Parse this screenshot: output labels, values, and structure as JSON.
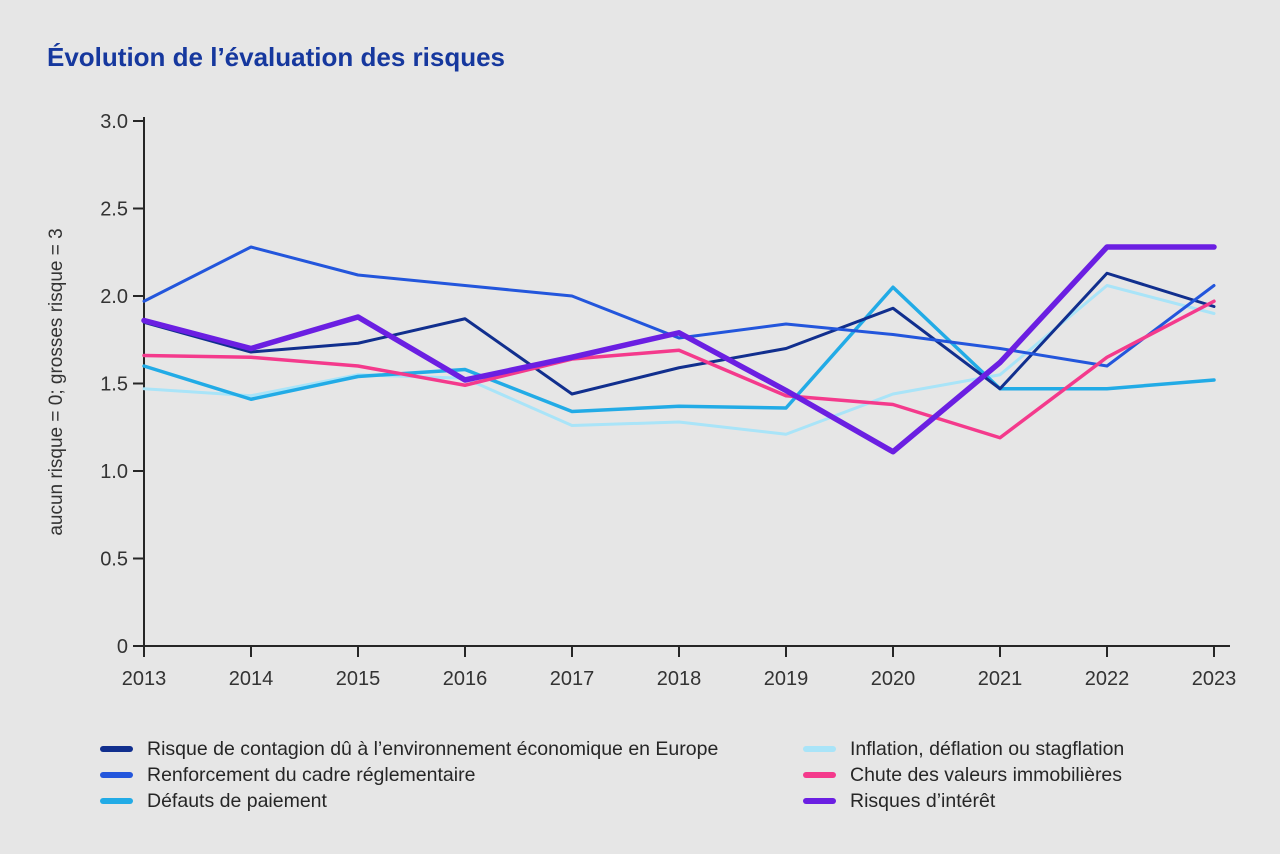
{
  "title": "Évolution de l’évaluation des risques",
  "chart_data": {
    "type": "line",
    "x": [
      2013,
      2014,
      2015,
      2016,
      2017,
      2018,
      2019,
      2020,
      2021,
      2022,
      2023
    ],
    "x_labels": [
      "2013",
      "2014",
      "2015",
      "2016",
      "2017",
      "2018",
      "2019",
      "2020",
      "2021",
      "2022",
      "2023"
    ],
    "ylabel": "aucun risque = 0; grosses risque = 3",
    "ylim": [
      0,
      3
    ],
    "yticks": [
      0,
      0.5,
      1,
      1.5,
      2,
      2.5,
      3
    ],
    "ytick_labels": [
      "0",
      "0.5",
      "1.0",
      "1.5",
      "2.0",
      "2.5",
      "3.0"
    ],
    "grid": false,
    "legend_position": "bottom",
    "series": [
      {
        "name": "Risque de contagion dû à l’environnement économique en Europe",
        "color": "#112f8e",
        "width": 3,
        "values": [
          1.85,
          1.68,
          1.73,
          1.87,
          1.44,
          1.59,
          1.7,
          1.93,
          1.47,
          2.13,
          1.94
        ]
      },
      {
        "name": "Renforcement du cadre réglementaire",
        "color": "#2356dc",
        "width": 3,
        "values": [
          1.97,
          2.28,
          2.12,
          2.06,
          2.0,
          1.76,
          1.84,
          1.78,
          1.7,
          1.6,
          2.06
        ]
      },
      {
        "name": "Défauts de paiement",
        "color": "#22abe6",
        "width": 3.5,
        "values": [
          1.6,
          1.41,
          1.54,
          1.58,
          1.34,
          1.37,
          1.36,
          2.05,
          1.47,
          1.47,
          1.52
        ]
      },
      {
        "name": "Inflation, déflation ou stagflation",
        "color": "#a9e4f8",
        "width": 3,
        "values": [
          1.47,
          1.43,
          1.55,
          1.53,
          1.26,
          1.28,
          1.21,
          1.44,
          1.55,
          2.06,
          1.9
        ]
      },
      {
        "name": "Chute des valeurs immobilières",
        "color": "#f43a8c",
        "width": 3.5,
        "values": [
          1.66,
          1.65,
          1.6,
          1.49,
          1.64,
          1.69,
          1.43,
          1.38,
          1.19,
          1.65,
          1.97
        ]
      },
      {
        "name": "Risques d’intérêt",
        "color": "#6b1fe2",
        "width": 5.5,
        "values": [
          1.86,
          1.7,
          1.88,
          1.52,
          1.65,
          1.79,
          1.46,
          1.11,
          1.62,
          2.28,
          2.28
        ]
      }
    ],
    "draw_order": [
      3,
      2,
      0,
      1,
      4,
      5
    ],
    "legend_columns": [
      [
        0,
        1,
        2
      ],
      [
        3,
        4,
        5
      ]
    ]
  },
  "colors": {
    "background": "#e6e6e6",
    "title": "#16389e",
    "axis": "#262626",
    "tick_text": "#333333"
  }
}
